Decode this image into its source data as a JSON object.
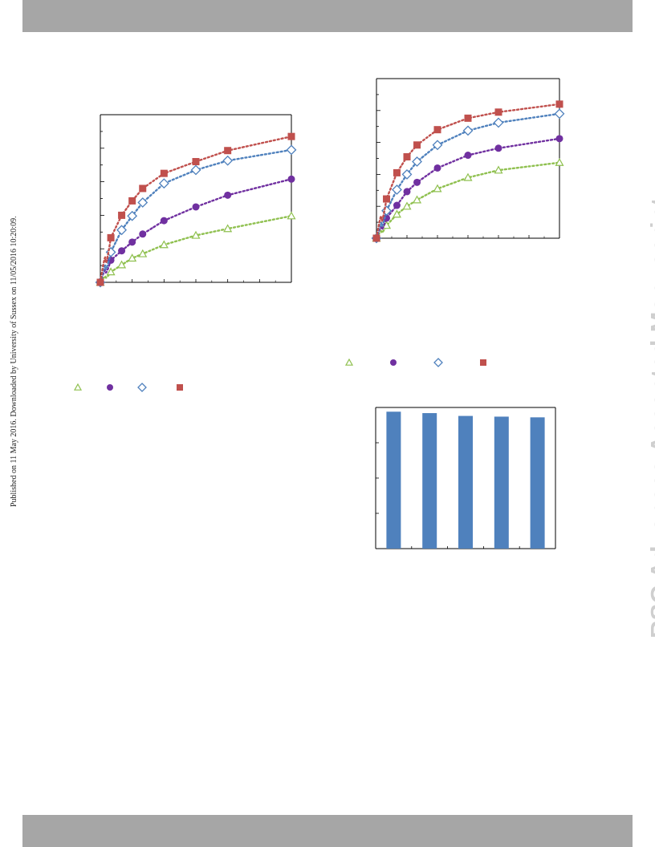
{
  "page": {
    "side_note": "Published on 11 May 2016. Downloaded by University of Sussex on 11/05/2016 10:20:09.",
    "watermark": "RSC Advances Accepted Manuscript"
  },
  "colors": {
    "header_band": "#a6a6a6",
    "series": [
      "#8fc04f",
      "#7030a0",
      "#4f81bd",
      "#c0504d"
    ],
    "bar": "#4f81bd",
    "watermark": "#cfcfcf"
  },
  "chart_data": [
    {
      "type": "scatter",
      "title": "",
      "xlabel": "",
      "ylabel": "",
      "xlim": [
        0,
        6
      ],
      "ylim": [
        0,
        5
      ],
      "grid": false,
      "legend_position": "below",
      "series": [
        {
          "marker": "triangle-open",
          "color": "#8fc04f",
          "x": [
            0,
            0.33,
            0.67,
            1.0,
            1.33,
            2.0,
            3.0,
            4.0,
            6.0
          ],
          "y": [
            0,
            0.31,
            0.52,
            0.72,
            0.85,
            1.12,
            1.4,
            1.6,
            1.98
          ]
        },
        {
          "marker": "circle",
          "color": "#7030a0",
          "x": [
            0,
            0.33,
            0.67,
            1.0,
            1.33,
            2.0,
            3.0,
            4.0,
            6.0
          ],
          "y": [
            0,
            0.66,
            0.94,
            1.2,
            1.44,
            1.84,
            2.25,
            2.6,
            3.08
          ]
        },
        {
          "marker": "diamond-open",
          "color": "#4f81bd",
          "x": [
            0,
            0.33,
            0.67,
            1.0,
            1.33,
            2.0,
            3.0,
            4.0,
            6.0
          ],
          "y": [
            0,
            0.9,
            1.56,
            1.98,
            2.38,
            2.95,
            3.35,
            3.63,
            3.95
          ]
        },
        {
          "marker": "square",
          "color": "#c0504d",
          "x": [
            0,
            0.33,
            0.67,
            1.0,
            1.33,
            2.0,
            3.0,
            4.0,
            6.0
          ],
          "y": [
            0,
            1.33,
            2.0,
            2.43,
            2.8,
            3.25,
            3.6,
            3.93,
            4.35
          ]
        }
      ]
    },
    {
      "type": "scatter",
      "title": "",
      "xlabel": "",
      "ylabel": "",
      "xlim": [
        0,
        6
      ],
      "ylim": [
        0,
        5
      ],
      "grid": false,
      "legend_position": "below",
      "series": [
        {
          "marker": "triangle-open",
          "color": "#8fc04f",
          "x": [
            0,
            0.33,
            0.67,
            1.0,
            1.33,
            2.0,
            3.0,
            4.0,
            6.0
          ],
          "y": [
            0,
            0.4,
            0.75,
            1.0,
            1.2,
            1.55,
            1.9,
            2.13,
            2.37
          ]
        },
        {
          "marker": "circle",
          "color": "#7030a0",
          "x": [
            0,
            0.33,
            0.67,
            1.0,
            1.33,
            2.0,
            3.0,
            4.0,
            6.0
          ],
          "y": [
            0,
            0.63,
            1.03,
            1.46,
            1.75,
            2.2,
            2.6,
            2.82,
            3.12
          ]
        },
        {
          "marker": "diamond-open",
          "color": "#4f81bd",
          "x": [
            0,
            0.33,
            0.67,
            1.0,
            1.33,
            2.0,
            3.0,
            4.0,
            6.0
          ],
          "y": [
            0,
            0.86,
            1.52,
            2.0,
            2.4,
            2.92,
            3.37,
            3.62,
            3.9
          ]
        },
        {
          "marker": "square",
          "color": "#c0504d",
          "x": [
            0,
            0.33,
            0.67,
            1.0,
            1.33,
            2.0,
            3.0,
            4.0,
            6.0
          ],
          "y": [
            0,
            1.23,
            2.05,
            2.55,
            2.92,
            3.4,
            3.76,
            3.95,
            4.2
          ]
        }
      ]
    },
    {
      "type": "bar",
      "title": "",
      "xlabel": "",
      "ylabel": "",
      "categories": [
        "",
        "",
        "",
        "",
        ""
      ],
      "values": [
        97,
        96,
        94,
        93.5,
        93
      ],
      "ylim": [
        0,
        100
      ],
      "grid": false
    }
  ]
}
